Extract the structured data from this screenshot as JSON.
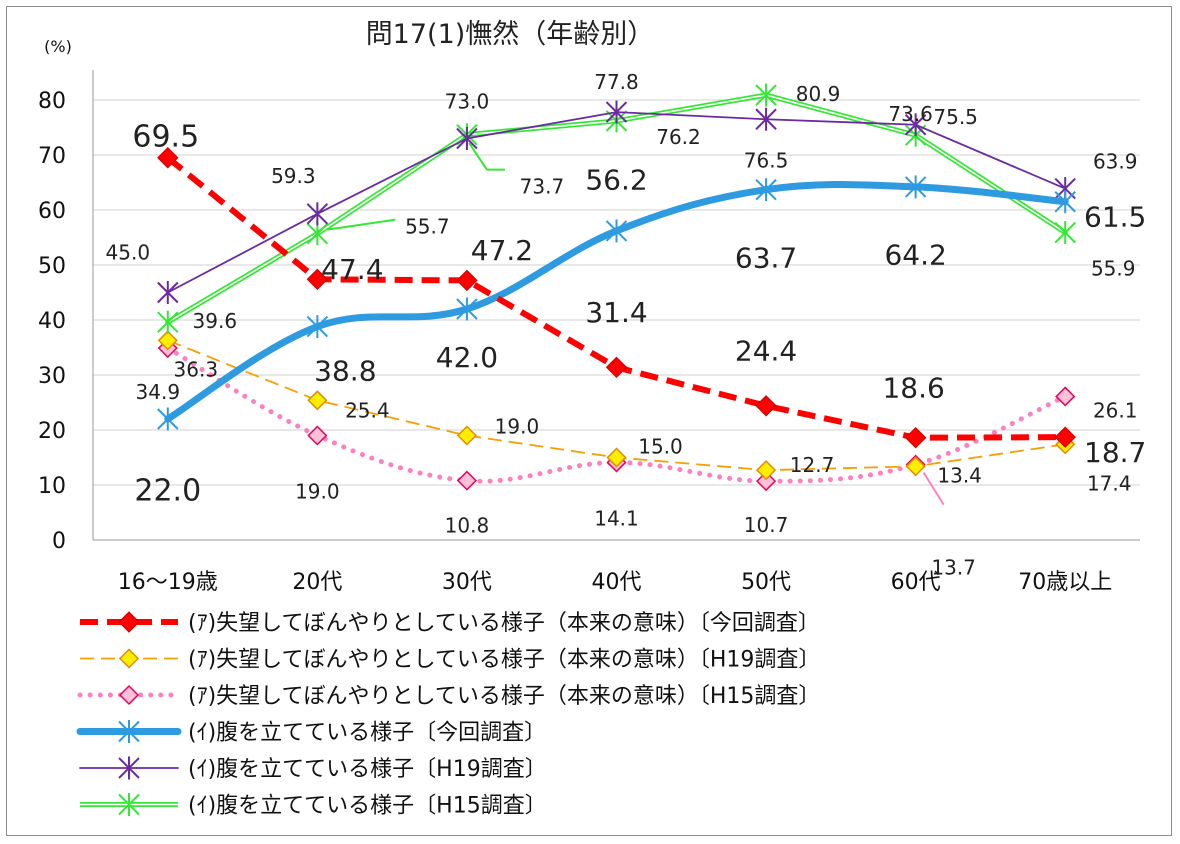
{
  "chart_data": {
    "type": "line",
    "title": "問17(1)憮然（年齢別）",
    "ylabel": "(%)",
    "xlabel": "",
    "ylim": [
      0,
      80
    ],
    "yticks": [
      0,
      10,
      20,
      30,
      40,
      50,
      60,
      70,
      80
    ],
    "grid": true,
    "legend_position": "bottom",
    "categories": [
      "16～19歳",
      "20代",
      "30代",
      "40代",
      "50代",
      "60代",
      "70歳以上"
    ],
    "series": [
      {
        "name": "(ｱ)失望してぼんやりとしている様子（本来の意味）〔今回調査〕",
        "values": [
          69.5,
          47.4,
          47.2,
          31.4,
          24.4,
          18.6,
          18.7
        ],
        "color": "#ff0000",
        "style": "dashed-thick",
        "marker": "diamond-filled"
      },
      {
        "name": "(ｱ)失望してぼんやりとしている様子（本来の意味）〔H19調査〕",
        "values": [
          36.3,
          25.4,
          19.0,
          15.0,
          12.7,
          13.4,
          17.4
        ],
        "color": "#f5a000",
        "style": "dashed-thin",
        "marker": "diamond-yellow"
      },
      {
        "name": "(ｱ)失望してぼんやりとしている様子（本来の意味）〔H15調査〕",
        "values": [
          34.9,
          19.0,
          10.8,
          14.1,
          10.7,
          13.7,
          26.1
        ],
        "color": "#ff80c0",
        "style": "dotted",
        "marker": "diamond-pink"
      },
      {
        "name": "(ｲ)腹を立てている様子〔今回調査〕",
        "values": [
          22.0,
          38.8,
          42.0,
          56.2,
          63.7,
          64.2,
          61.5
        ],
        "color": "#2e9be0",
        "style": "solid-thick",
        "marker": "star"
      },
      {
        "name": "(ｲ)腹を立てている様子〔H19調査〕",
        "values": [
          45.0,
          59.3,
          73.0,
          77.8,
          76.5,
          75.5,
          63.9
        ],
        "color": "#6a2aa0",
        "style": "solid-thin",
        "marker": "star"
      },
      {
        "name": "(ｲ)腹を立てている様子〔H15調査〕",
        "values": [
          39.6,
          55.7,
          73.7,
          76.2,
          80.9,
          73.6,
          55.9
        ],
        "color": "#33e833",
        "style": "solid-double",
        "marker": "star"
      }
    ]
  }
}
